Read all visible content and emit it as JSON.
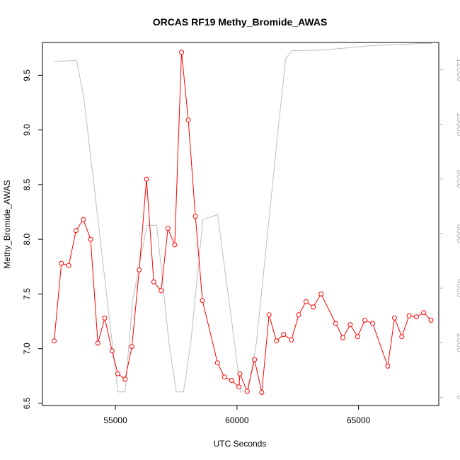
{
  "chart_data": {
    "type": "line",
    "title": "ORCAS RF19 Methy_Bromide_AWAS",
    "xlabel": "UTC Seconds",
    "ylabel": "Methy_Bromide_AWAS",
    "y2label": "",
    "xlim": [
      52000,
      68300
    ],
    "ylim": [
      6.48,
      9.8
    ],
    "y2lim": [
      -300,
      13000
    ],
    "x_ticks": [
      55000,
      60000,
      65000
    ],
    "y_ticks": [
      6.5,
      7.0,
      7.5,
      8.0,
      8.5,
      9.0,
      9.5
    ],
    "y2_ticks": [
      0,
      2000,
      4000,
      6000,
      8000,
      10000,
      12000
    ],
    "grid": false,
    "colors": {
      "primary": "#ff0000",
      "secondary": "#bebebe",
      "secondary_axis": "#b3b3b3"
    },
    "series": [
      {
        "axis": "left",
        "marker": "circle",
        "x": [
          52480,
          52780,
          53080,
          53380,
          53680,
          53980,
          54280,
          54560,
          54860,
          55100,
          55400,
          55680,
          55980,
          56280,
          56580,
          56880,
          57160,
          57440,
          57720,
          58000,
          58290,
          58580,
          59200,
          59480,
          59780,
          60080,
          60120,
          60420,
          60720,
          61020,
          61320,
          61620,
          61920,
          62240,
          62540,
          62840,
          63140,
          63460,
          64060,
          64360,
          64660,
          64960,
          65260,
          65580,
          66200,
          66480,
          66780,
          67080,
          67380,
          67680,
          67980
        ],
        "values": [
          7.07,
          7.78,
          7.76,
          8.08,
          8.18,
          8.0,
          7.05,
          7.28,
          6.98,
          6.77,
          6.72,
          7.02,
          7.72,
          8.55,
          7.61,
          7.53,
          8.1,
          7.95,
          9.71,
          9.09,
          8.21,
          7.44,
          6.87,
          6.74,
          6.71,
          6.65,
          6.77,
          6.61,
          6.9,
          6.6,
          7.31,
          7.07,
          7.13,
          7.08,
          7.31,
          7.43,
          7.38,
          7.5,
          7.23,
          7.1,
          7.22,
          7.11,
          7.26,
          7.23,
          6.84,
          7.28,
          7.11,
          7.3,
          7.29,
          7.33,
          7.26
        ]
      },
      {
        "axis": "right",
        "marker": "none",
        "x": [
          52480,
          52800,
          53150,
          53400,
          53700,
          55100,
          55400,
          55700,
          56300,
          56700,
          57200,
          57500,
          57800,
          58100,
          58600,
          59200,
          59900,
          60150,
          60450,
          60800,
          61200,
          61600,
          62000,
          62250,
          63500,
          64500,
          65500,
          66500,
          67500,
          68000
        ],
        "values": [
          12300,
          12320,
          12330,
          12350,
          11000,
          200,
          200,
          3500,
          6300,
          6300,
          2000,
          200,
          200,
          2000,
          6500,
          6700,
          2000,
          200,
          200,
          2000,
          5500,
          9000,
          12400,
          12700,
          12720,
          12800,
          12880,
          12920,
          12960,
          12960
        ]
      }
    ]
  }
}
